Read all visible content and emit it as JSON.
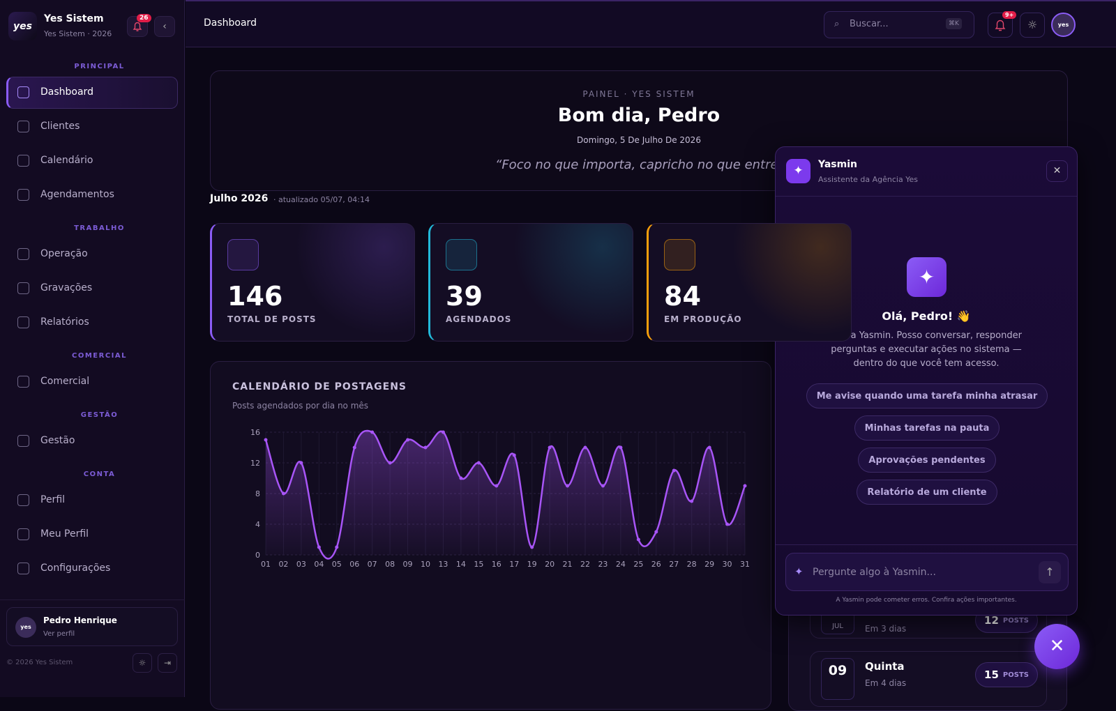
{
  "sidebar": {
    "logo": "yes",
    "name": "Yes Sistem",
    "sub": "Yes Sistem · 2026",
    "badge": "26",
    "sections": [
      {
        "title": "PRINCIPAL",
        "items": [
          "Dashboard",
          "Clientes",
          "Calendário",
          "Agendamentos"
        ]
      },
      {
        "title": "TRABALHO",
        "items": [
          "Operação",
          "Gravações",
          "Relatórios"
        ]
      },
      {
        "title": "COMERCIAL",
        "items": [
          "Comercial"
        ]
      },
      {
        "title": "GESTÃO",
        "items": [
          "Gestão"
        ]
      },
      {
        "title": "CONTA",
        "items": [
          "Perfil",
          "Meu Perfil",
          "Configurações"
        ]
      }
    ],
    "user": {
      "avatar": "yes",
      "name": "Pedro Henrique",
      "link": "Ver perfil"
    },
    "footer": "© 2026 Yes Sistem"
  },
  "header": {
    "title": "Dashboard",
    "search": "Buscar...",
    "shortcut": "⌘K",
    "badge": "9+",
    "avatar": "yes"
  },
  "hero": {
    "eyebrow": "PAINEL · YES SISTEM",
    "greeting": "Bom dia, Pedro",
    "date": "Domingo, 5 De Julho De 2026",
    "quote": "“Foco no que importa, capricho no que entrega"
  },
  "period": {
    "month": "Julho 2026",
    "updated": "· atualizado 05/07, 04:14"
  },
  "stats": [
    {
      "value": 146,
      "label": "TOTAL DE POSTS",
      "color": "#8b5cf6"
    },
    {
      "value": 39,
      "label": "AGENDADOS",
      "color": "#22b8d8"
    },
    {
      "value": 84,
      "label": "EM PRODUÇÃO",
      "color": "#f59e0b"
    }
  ],
  "chart_data": {
    "type": "line",
    "title": "CALENDÁRIO DE POSTAGENS",
    "subtitle": "Posts agendados por dia no mês",
    "color": "#a855f7",
    "categories": [
      "01",
      "02",
      "03",
      "04",
      "05",
      "06",
      "07",
      "08",
      "09",
      "10",
      "13",
      "14",
      "15",
      "16",
      "17",
      "19",
      "20",
      "21",
      "22",
      "23",
      "24",
      "25",
      "26",
      "27",
      "28",
      "29",
      "30",
      "31"
    ],
    "values": [
      15,
      8,
      12,
      1,
      1,
      14,
      16,
      12,
      15,
      14,
      16,
      10,
      12,
      9,
      13,
      1,
      14,
      9,
      14,
      9,
      14,
      2,
      3,
      11,
      7,
      14,
      4,
      9
    ],
    "ylim": [
      0,
      16
    ],
    "yticks": [
      0,
      4,
      8,
      12,
      16
    ],
    "grid": true
  },
  "upcoming": [
    {
      "month": "JUL",
      "when": "Em 3 dias",
      "count": 12,
      "unit": "POSTS"
    },
    {
      "day": "09",
      "weekday": "Quinta",
      "when": "Em 4 dias",
      "count": 15,
      "unit": "POSTS"
    }
  ],
  "assistant": {
    "name": "Yasmin",
    "role": "Assistente da Agência Yes",
    "greeting": "Olá, Pedro! 👋",
    "intro": "Sou a Yasmin. Posso conversar, responder perguntas e executar ações no sistema — dentro do que você tem acesso.",
    "suggestions": [
      "Me avise quando uma tarefa minha atrasar",
      "Minhas tarefas na pauta",
      "Aprovações pendentes",
      "Relatório de um cliente"
    ],
    "placeholder": "Pergunte algo à Yasmin...",
    "disclaimer": "A Yasmin pode cometer erros. Confira ações importantes."
  }
}
